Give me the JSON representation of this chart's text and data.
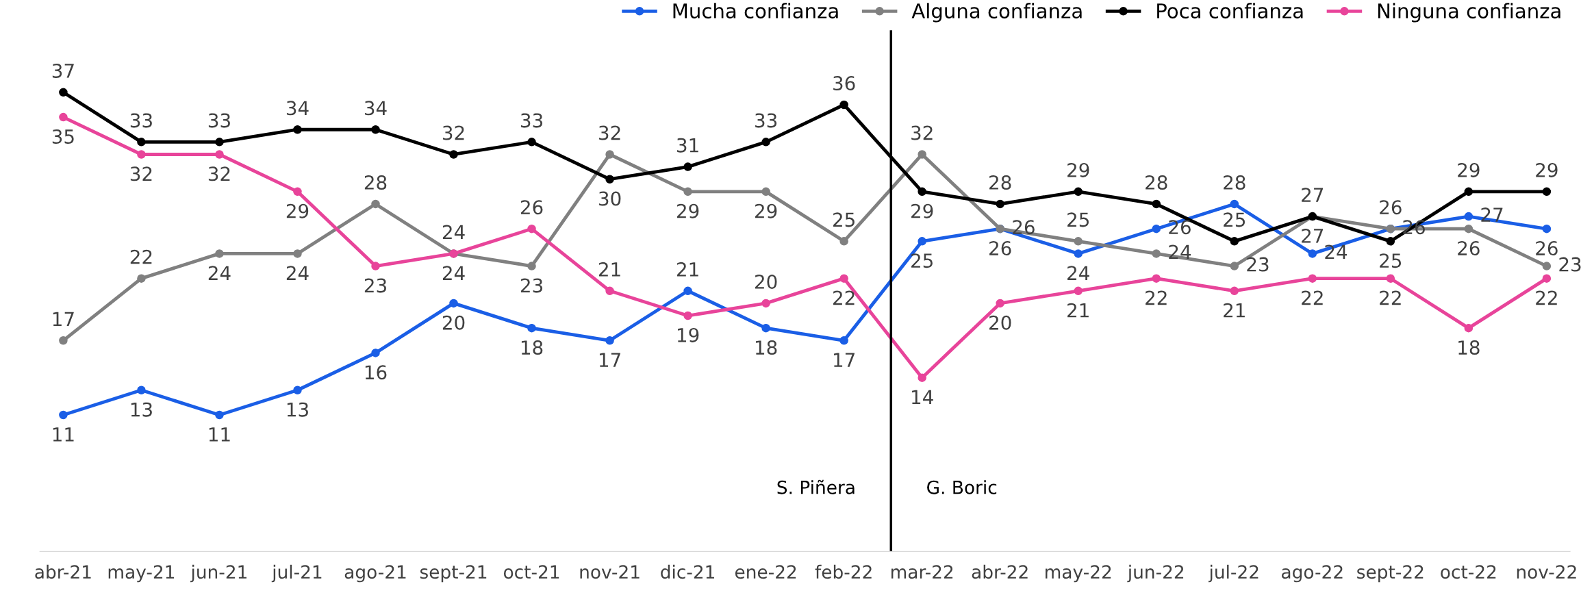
{
  "chart_data": {
    "type": "line",
    "categories": [
      "abr-21",
      "may-21",
      "jun-21",
      "jul-21",
      "ago-21",
      "sept-21",
      "oct-21",
      "nov-21",
      "dic-21",
      "ene-22",
      "feb-22",
      "mar-22",
      "abr-22",
      "may-22",
      "jun-22",
      "jul-22",
      "ago-22",
      "sept-22",
      "oct-22",
      "nov-22"
    ],
    "series": [
      {
        "name": "Mucha confianza",
        "color": "#1a5ee6",
        "values": [
          11,
          13,
          11,
          13,
          16,
          20,
          18,
          17,
          21,
          18,
          17,
          25,
          26,
          24,
          26,
          28,
          24,
          26,
          27,
          26
        ]
      },
      {
        "name": "Alguna confianza",
        "color": "#808080",
        "values": [
          17,
          22,
          24,
          24,
          28,
          24,
          23,
          32,
          29,
          29,
          25,
          32,
          26,
          25,
          24,
          23,
          27,
          26,
          26,
          23
        ]
      },
      {
        "name": "Poca confianza",
        "color": "#000000",
        "values": [
          37,
          33,
          33,
          34,
          34,
          32,
          33,
          30,
          31,
          33,
          36,
          29,
          28,
          29,
          28,
          25,
          27,
          25,
          29,
          29
        ]
      },
      {
        "name": "Ninguna confianza",
        "color": "#e8449a",
        "values": [
          35,
          32,
          32,
          29,
          23,
          24,
          26,
          21,
          19,
          20,
          22,
          14,
          20,
          21,
          22,
          21,
          22,
          22,
          18,
          22
        ]
      }
    ],
    "ylim": [
      0,
      42
    ],
    "tick_labels": "x",
    "data_labels": true,
    "marker": "circle",
    "line_style": "solid",
    "legend": "top right",
    "grid": false,
    "annotations": [
      "S. Piñera",
      "G. Boric"
    ]
  }
}
